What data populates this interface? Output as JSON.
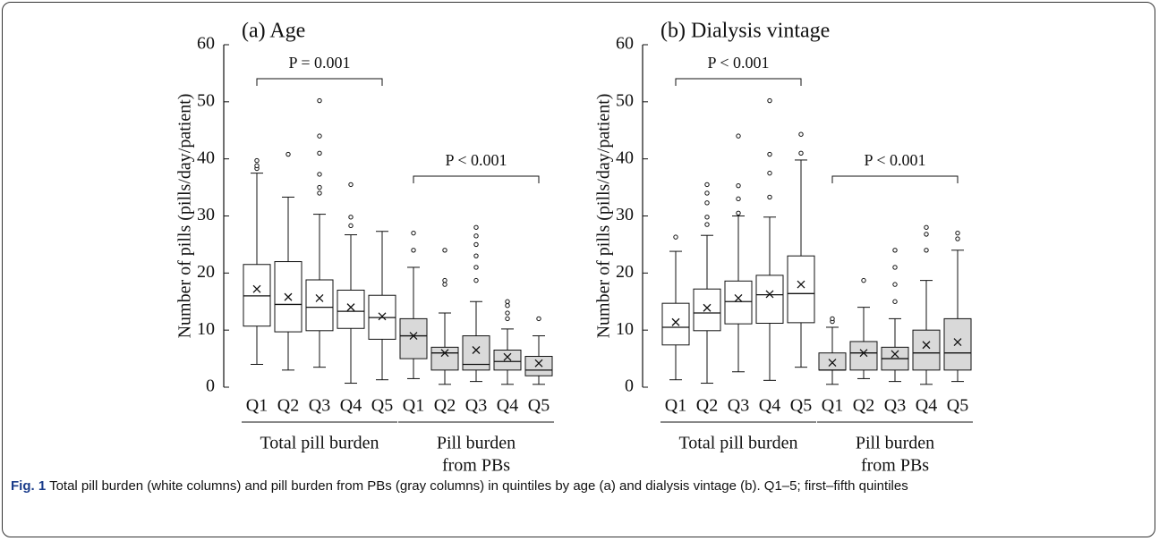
{
  "chart_data": [
    {
      "type": "box",
      "title": "(a) Age",
      "y_label": "Number of pills (pills/day/patient)",
      "ylim": [
        0,
        60
      ],
      "yticks": [
        0,
        10,
        20,
        30,
        40,
        50,
        60
      ],
      "categories": [
        "Q1",
        "Q2",
        "Q3",
        "Q4",
        "Q5"
      ],
      "groups": [
        {
          "label": [
            "Total pill burden"
          ],
          "color": "#ffffff",
          "p_label": "P = 0.001",
          "boxes": [
            {
              "whisker_low": 4,
              "q1": 10.7,
              "median": 16,
              "q3": 21.5,
              "whisker_high": 37.5,
              "mean": 17.2,
              "outliers": [
                38.3,
                38.8,
                39.7
              ]
            },
            {
              "whisker_low": 3,
              "q1": 9.7,
              "median": 14.5,
              "q3": 22,
              "whisker_high": 33.3,
              "mean": 15.8,
              "outliers": [
                40.8
              ]
            },
            {
              "whisker_low": 3.5,
              "q1": 9.9,
              "median": 14,
              "q3": 18.8,
              "whisker_high": 30.3,
              "mean": 15.6,
              "outliers": [
                34,
                35,
                37.3,
                41,
                44,
                50.2
              ]
            },
            {
              "whisker_low": 0.7,
              "q1": 10.3,
              "median": 13.3,
              "q3": 17,
              "whisker_high": 26.7,
              "mean": 14,
              "outliers": [
                28.3,
                29.8,
                35.5
              ]
            },
            {
              "whisker_low": 1.3,
              "q1": 8.4,
              "median": 12.2,
              "q3": 16.1,
              "whisker_high": 27.3,
              "mean": 12.4,
              "outliers": []
            }
          ]
        },
        {
          "label": [
            "Pill burden",
            "from PBs"
          ],
          "color": "#d9d9d9",
          "p_label": "P < 0.001",
          "boxes": [
            {
              "whisker_low": 1.5,
              "q1": 5,
              "median": 9,
              "q3": 12,
              "whisker_high": 21,
              "mean": 9,
              "outliers": [
                24,
                27
              ]
            },
            {
              "whisker_low": 0.5,
              "q1": 3,
              "median": 6,
              "q3": 7,
              "whisker_high": 13,
              "mean": 6,
              "outliers": [
                18,
                18.7,
                24
              ]
            },
            {
              "whisker_low": 1,
              "q1": 3,
              "median": 4,
              "q3": 9,
              "whisker_high": 15,
              "mean": 6.5,
              "outliers": [
                18.7,
                21,
                23,
                25,
                26.5,
                28
              ]
            },
            {
              "whisker_low": 0.5,
              "q1": 3,
              "median": 4.5,
              "q3": 6.5,
              "whisker_high": 10.2,
              "mean": 5.3,
              "outliers": [
                12,
                13,
                14.3,
                15
              ]
            },
            {
              "whisker_low": 0.5,
              "q1": 2,
              "median": 3,
              "q3": 5.4,
              "whisker_high": 9,
              "mean": 4.2,
              "outliers": [
                12
              ]
            }
          ]
        }
      ]
    },
    {
      "type": "box",
      "title": "(b) Dialysis vintage",
      "y_label": "Number of pills (pills/day/patient)",
      "ylim": [
        0,
        60
      ],
      "yticks": [
        0,
        10,
        20,
        30,
        40,
        50,
        60
      ],
      "categories": [
        "Q1",
        "Q2",
        "Q3",
        "Q4",
        "Q5"
      ],
      "groups": [
        {
          "label": [
            "Total pill burden"
          ],
          "color": "#ffffff",
          "p_label": "P < 0.001",
          "boxes": [
            {
              "whisker_low": 1.3,
              "q1": 7.4,
              "median": 10.5,
              "q3": 14.7,
              "whisker_high": 23.8,
              "mean": 11.4,
              "outliers": [
                26.3
              ]
            },
            {
              "whisker_low": 0.7,
              "q1": 9.9,
              "median": 13,
              "q3": 17.2,
              "whisker_high": 26.6,
              "mean": 13.9,
              "outliers": [
                28.5,
                29.8,
                32.3,
                34,
                35.5
              ]
            },
            {
              "whisker_low": 2.7,
              "q1": 11.1,
              "median": 15,
              "q3": 18.6,
              "whisker_high": 30,
              "mean": 15.6,
              "outliers": [
                30.5,
                33,
                35.3,
                44
              ]
            },
            {
              "whisker_low": 1.2,
              "q1": 11.2,
              "median": 16.2,
              "q3": 19.6,
              "whisker_high": 29.8,
              "mean": 16.3,
              "outliers": [
                33.3,
                37.5,
                40.8,
                50.2
              ]
            },
            {
              "whisker_low": 3.5,
              "q1": 11.3,
              "median": 16.4,
              "q3": 23,
              "whisker_high": 39.8,
              "mean": 18,
              "outliers": [
                41,
                44.3
              ]
            }
          ]
        },
        {
          "label": [
            "Pill burden",
            "from PBs"
          ],
          "color": "#d9d9d9",
          "p_label": "P < 0.001",
          "boxes": [
            {
              "whisker_low": 0.5,
              "q1": 3,
              "median": 3,
              "q3": 6,
              "whisker_high": 10.5,
              "mean": 4.3,
              "outliers": [
                11.5,
                12
              ]
            },
            {
              "whisker_low": 1.5,
              "q1": 3,
              "median": 6,
              "q3": 8,
              "whisker_high": 14,
              "mean": 6,
              "outliers": [
                18.7
              ]
            },
            {
              "whisker_low": 1,
              "q1": 3,
              "median": 5,
              "q3": 7,
              "whisker_high": 12,
              "mean": 5.8,
              "outliers": [
                15,
                18,
                21,
                24
              ]
            },
            {
              "whisker_low": 0.5,
              "q1": 3,
              "median": 6,
              "q3": 10,
              "whisker_high": 18.7,
              "mean": 7.4,
              "outliers": [
                24,
                26.8,
                28
              ]
            },
            {
              "whisker_low": 1,
              "q1": 3,
              "median": 6,
              "q3": 12,
              "whisker_high": 24,
              "mean": 7.9,
              "outliers": [
                26,
                27
              ]
            }
          ]
        }
      ]
    }
  ],
  "caption": {
    "label": "Fig. 1",
    "text": "Total pill burden (white columns) and pill burden from PBs (gray columns) in quintiles by age (a) and dialysis vintage (b). Q1–5; first–fifth quintiles"
  }
}
